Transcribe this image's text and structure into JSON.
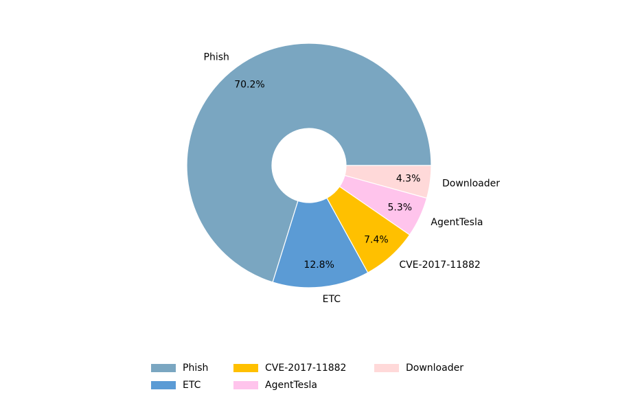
{
  "chart_data": {
    "type": "donut",
    "categories": [
      "Phish",
      "ETC",
      "CVE-2017-11882",
      "AgentTesla",
      "Downloader"
    ],
    "values": [
      70.2,
      12.8,
      7.4,
      5.3,
      4.3
    ],
    "value_labels": [
      "70.2%",
      "12.8%",
      "7.4%",
      "5.3%",
      "4.3%"
    ],
    "colors": [
      "#7aa6c1",
      "#5b9bd5",
      "#ffc000",
      "#ffc4ec",
      "#ffd9d9"
    ],
    "legend": "bottom"
  }
}
